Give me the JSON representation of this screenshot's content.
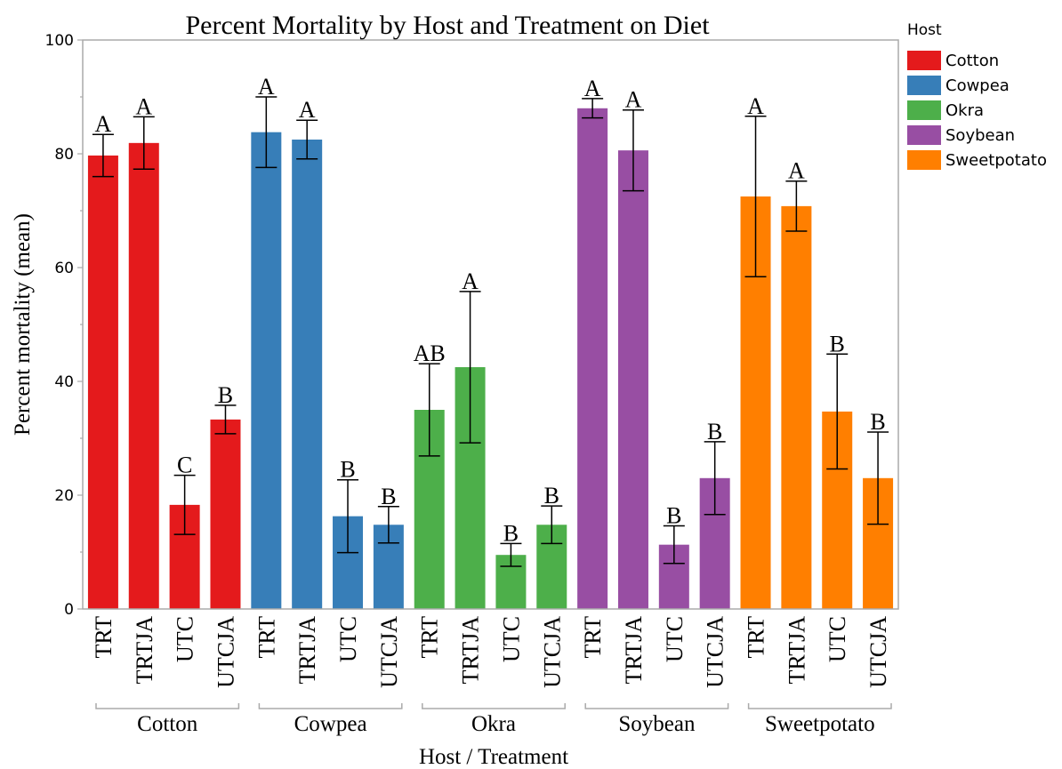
{
  "chart_data": {
    "type": "bar",
    "title": "Percent Mortality by Host and Treatment on Diet",
    "x_label": "Host / Treatment",
    "y_label": "Percent mortality (mean)",
    "legend_title": "Host",
    "legend_position": "right",
    "categories": [
      "TRT",
      "TRTJA",
      "UTC",
      "UTCJA"
    ],
    "series": [
      {
        "name": "Cotton",
        "color": "#e41a1c",
        "values": [
          79.7,
          81.9,
          18.3,
          33.3
        ],
        "errors": [
          3.7,
          4.6,
          5.2,
          2.5
        ],
        "letters": [
          "A",
          "A",
          "C",
          "B"
        ]
      },
      {
        "name": "Cowpea",
        "color": "#377eb8",
        "values": [
          83.8,
          82.5,
          16.3,
          14.8
        ],
        "errors": [
          6.2,
          3.4,
          6.4,
          3.2
        ],
        "letters": [
          "A",
          "A",
          "B",
          "B"
        ]
      },
      {
        "name": "Okra",
        "color": "#4daf4a",
        "values": [
          35.0,
          42.5,
          9.5,
          14.8
        ],
        "errors": [
          8.1,
          13.3,
          2.0,
          3.3
        ],
        "letters": [
          "AB",
          "A",
          "B",
          "B"
        ]
      },
      {
        "name": "Soybean",
        "color": "#984ea3",
        "values": [
          88.0,
          80.6,
          11.3,
          23.0
        ],
        "errors": [
          1.7,
          7.1,
          3.3,
          6.4
        ],
        "letters": [
          "A",
          "A",
          "B",
          "B"
        ]
      },
      {
        "name": "Sweetpotato",
        "color": "#ff7f00",
        "values": [
          72.5,
          70.8,
          34.7,
          23.0
        ],
        "errors": [
          14.1,
          4.4,
          10.1,
          8.1
        ],
        "letters": [
          "A",
          "A",
          "B",
          "B"
        ]
      }
    ],
    "ylim": [
      0,
      100
    ],
    "yticks": [
      0,
      20,
      40,
      60,
      80,
      100
    ],
    "minor_yticks": [
      10,
      30,
      50,
      70,
      90
    ],
    "grid": false
  }
}
